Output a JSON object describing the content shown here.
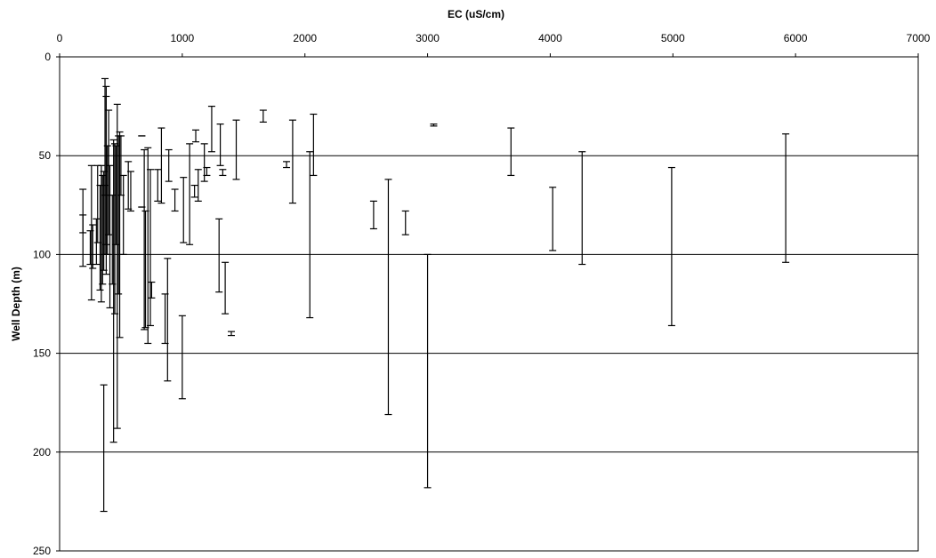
{
  "chart_data": {
    "type": "range",
    "xlabel": "EC (uS/cm)",
    "ylabel": "Well Depth (m)",
    "xlim": [
      0,
      7000
    ],
    "ylim": [
      0,
      250
    ],
    "y_reversed": true,
    "x_axis_position": "top",
    "x_ticks": [
      0,
      1000,
      2000,
      3000,
      4000,
      5000,
      6000,
      7000
    ],
    "y_ticks": [
      0,
      50,
      100,
      150,
      200,
      250
    ],
    "y_gridlines": [
      50,
      100,
      150,
      200
    ],
    "grid": "horizontal",
    "legend": "none",
    "series": [
      {
        "ranges": [
          [
            190,
            67,
            106
          ],
          [
            190,
            80,
            89
          ],
          [
            250,
            88,
            105
          ],
          [
            260,
            55,
            123
          ],
          [
            270,
            85,
            107
          ],
          [
            300,
            82,
            105
          ],
          [
            310,
            55,
            94
          ],
          [
            330,
            65,
            118
          ],
          [
            340,
            55,
            124
          ],
          [
            350,
            60,
            115
          ],
          [
            360,
            58,
            108
          ],
          [
            370,
            65,
            100
          ],
          [
            370,
            11,
            70
          ],
          [
            380,
            20,
            110
          ],
          [
            380,
            15,
            95
          ],
          [
            360,
            166,
            230
          ],
          [
            390,
            45,
            100
          ],
          [
            400,
            27,
            90
          ],
          [
            410,
            55,
            127
          ],
          [
            430,
            70,
            115
          ],
          [
            440,
            42,
            195
          ],
          [
            450,
            44,
            130
          ],
          [
            460,
            45,
            95
          ],
          [
            470,
            24,
            188
          ],
          [
            480,
            40,
            120
          ],
          [
            490,
            38,
            142
          ],
          [
            500,
            40,
            70
          ],
          [
            520,
            60,
            100
          ],
          [
            560,
            53,
            77
          ],
          [
            580,
            58,
            78
          ],
          [
            670,
            40,
            40
          ],
          [
            670,
            76,
            76
          ],
          [
            690,
            47,
            138
          ],
          [
            700,
            78,
            137
          ],
          [
            720,
            46,
            145
          ],
          [
            740,
            57,
            136
          ],
          [
            750,
            114,
            122
          ],
          [
            800,
            57,
            73
          ],
          [
            830,
            36,
            74
          ],
          [
            860,
            120,
            145
          ],
          [
            880,
            102,
            164
          ],
          [
            890,
            47,
            63
          ],
          [
            940,
            67,
            78
          ],
          [
            1000,
            131,
            173
          ],
          [
            1010,
            61,
            94
          ],
          [
            1060,
            44,
            95
          ],
          [
            1100,
            65,
            71
          ],
          [
            1110,
            37,
            43
          ],
          [
            1130,
            57,
            73
          ],
          [
            1180,
            44,
            63
          ],
          [
            1200,
            56,
            60
          ],
          [
            1240,
            25,
            48
          ],
          [
            1300,
            82,
            119
          ],
          [
            1310,
            34,
            55
          ],
          [
            1330,
            57,
            60
          ],
          [
            1350,
            104,
            130
          ],
          [
            1400,
            139,
            141
          ],
          [
            1440,
            32,
            62
          ],
          [
            1660,
            27,
            33
          ],
          [
            1850,
            53,
            56
          ],
          [
            1900,
            32,
            74
          ],
          [
            2040,
            48,
            132
          ],
          [
            2070,
            29,
            60
          ],
          [
            2560,
            73,
            87
          ],
          [
            2680,
            62,
            181
          ],
          [
            2820,
            78,
            90
          ],
          [
            3000,
            100,
            218
          ],
          [
            3050,
            34,
            35
          ],
          [
            3680,
            36,
            60
          ],
          [
            4020,
            66,
            98
          ],
          [
            4260,
            48,
            105
          ],
          [
            4990,
            56,
            136
          ],
          [
            5920,
            39,
            104
          ]
        ]
      }
    ]
  }
}
